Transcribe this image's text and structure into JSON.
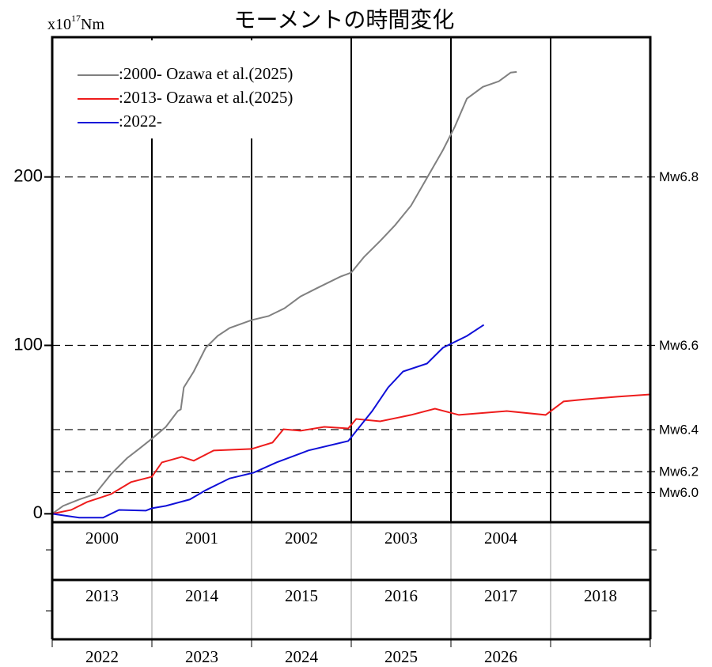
{
  "chart_data": {
    "type": "line",
    "title": "モーメントの時間変化",
    "y_unit": {
      "base": "x10",
      "exponent": "17",
      "unit": "Nm"
    },
    "xlim": [
      0,
      6
    ],
    "xticks": [
      0,
      1,
      2,
      3,
      4,
      5,
      6
    ],
    "ylim": [
      -5,
      283
    ],
    "yticks": [
      0,
      100,
      200
    ],
    "reference_lines": [
      {
        "value": 200,
        "label": "Mw6.8"
      },
      {
        "value": 100,
        "label": "Mw6.6"
      },
      {
        "value": 50,
        "label": "Mw6.4"
      },
      {
        "value": 25,
        "label": "Mw6.2"
      },
      {
        "value": 12.6,
        "label": "Mw6.0"
      }
    ],
    "year_rows": [
      [
        "2000",
        "2001",
        "2002",
        "2003",
        "2004",
        null
      ],
      [
        "2013",
        "2014",
        "2015",
        "2016",
        "2017",
        "2018"
      ],
      [
        "2022",
        "2023",
        "2024",
        "2025",
        "2026",
        null
      ]
    ],
    "legend": "upper left",
    "series": [
      {
        "name": ":2000- Ozawa et al.(2025)",
        "color": "#808080",
        "x": [
          0,
          0.11,
          0.27,
          0.43,
          0.59,
          0.75,
          0.87,
          1.0,
          1.14,
          1.26,
          1.29,
          1.32,
          1.42,
          1.54,
          1.66,
          1.78,
          2.0,
          2.17,
          2.33,
          2.49,
          2.65,
          2.89,
          3.0,
          3.13,
          3.29,
          3.44,
          3.6,
          3.76,
          3.92,
          4.04,
          4.16,
          4.32,
          4.48,
          4.6,
          4.66
        ],
        "values": [
          0,
          4.7,
          8.5,
          11.7,
          23.5,
          33,
          38.5,
          44.6,
          51.6,
          61,
          62,
          75,
          84.5,
          98.6,
          105.6,
          110.3,
          115,
          117.4,
          122,
          129,
          133.8,
          140.8,
          143.2,
          152.6,
          162,
          171.4,
          183,
          199.5,
          216,
          230,
          246.5,
          253.5,
          256.8,
          262,
          262.4
        ]
      },
      {
        "name": ":2013- Ozawa et al.(2025)",
        "color": "#ee1c1c",
        "x": [
          0,
          0.19,
          0.35,
          0.59,
          0.79,
          1.0,
          1.1,
          1.3,
          1.42,
          1.62,
          2.0,
          2.21,
          2.32,
          2.49,
          2.73,
          2.97,
          3.05,
          3.29,
          3.6,
          3.84,
          4.08,
          4.56,
          4.95,
          5.13,
          5.35,
          5.67,
          6.0
        ],
        "values": [
          0,
          2.3,
          7,
          11.7,
          18.8,
          22,
          30.5,
          33.8,
          31.5,
          37.6,
          38.5,
          42.3,
          50.2,
          49.3,
          51.6,
          50.7,
          56.3,
          54.9,
          58.7,
          62.4,
          58.7,
          61,
          58.7,
          66.7,
          68,
          69.5,
          70.9
        ]
      },
      {
        "name": ":2022-",
        "color": "#1010d8",
        "x": [
          0,
          0.27,
          0.51,
          0.67,
          0.94,
          1.0,
          1.14,
          1.38,
          1.54,
          1.78,
          2.02,
          2.25,
          2.57,
          2.97,
          3.21,
          3.37,
          3.52,
          3.76,
          3.92,
          4.16,
          4.33
        ],
        "values": [
          0,
          -2.3,
          -2.3,
          2.3,
          1.9,
          3.3,
          4.7,
          8.5,
          14,
          21,
          24.4,
          30.5,
          37.6,
          43.2,
          61,
          75,
          84.5,
          89.2,
          98.6,
          105.6,
          112.2
        ]
      }
    ]
  }
}
